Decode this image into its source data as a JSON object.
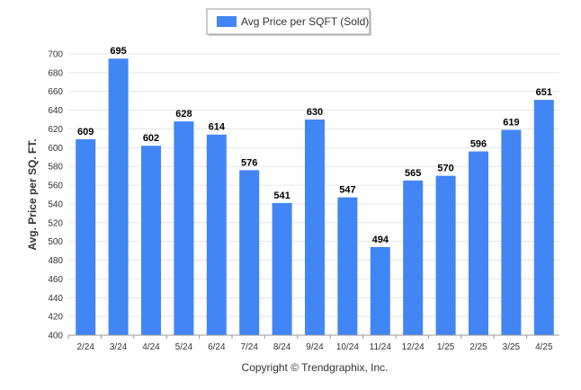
{
  "chart_data": {
    "type": "bar",
    "categories": [
      "2/24",
      "3/24",
      "4/24",
      "5/24",
      "6/24",
      "7/24",
      "8/24",
      "9/24",
      "10/24",
      "11/24",
      "12/24",
      "1/25",
      "2/25",
      "3/25",
      "4/25"
    ],
    "series": [
      {
        "name": "Avg Price per SQFT (Sold)",
        "values": [
          609,
          695,
          602,
          628,
          614,
          576,
          541,
          630,
          547,
          494,
          565,
          570,
          596,
          619,
          651
        ]
      }
    ],
    "ylabel": "Avg. Price per SQ. FT.",
    "xlabel": "",
    "ylim": [
      400,
      700
    ],
    "ytick_step": 20,
    "grid": true,
    "legend_position": "top-center",
    "bar_color": "#4285f4",
    "show_data_labels": true
  },
  "footer": {
    "copyright": "Copyright © Trendgraphix, Inc."
  }
}
